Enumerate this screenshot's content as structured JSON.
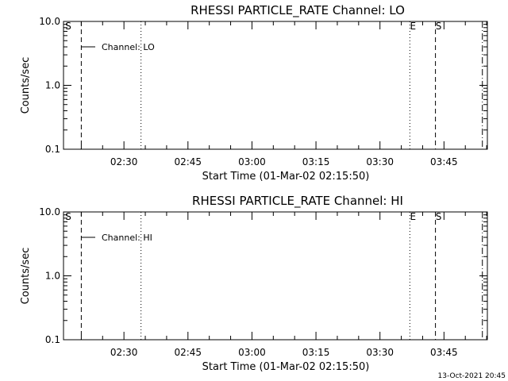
{
  "chart_data": [
    {
      "type": "line",
      "title": "RHESSI PARTICLE_RATE Channel: LO",
      "xlabel": "Start Time (01-Mar-02 02:15:50)",
      "ylabel": "Counts/sec",
      "y_scale": "log",
      "ylim": [
        0.1,
        10.0
      ],
      "y_ticks": [
        "10.0",
        "1.0",
        "0.1"
      ],
      "x_ticks": [
        "02:30",
        "02:45",
        "03:00",
        "03:15",
        "03:30",
        "03:45"
      ],
      "legend": {
        "label": "Channel: LO",
        "placement": "top-left"
      },
      "series": [
        {
          "name": "Channel: LO",
          "values": []
        }
      ],
      "markers": [
        {
          "time": "02:20",
          "label": "S",
          "style": "dashed"
        },
        {
          "time": "02:34",
          "label": "",
          "style": "dotted"
        },
        {
          "time": "03:37",
          "label": "E",
          "style": "dotted"
        },
        {
          "time": "03:43",
          "label": "S",
          "style": "dashed"
        },
        {
          "time": "03:54",
          "label": "",
          "style": "dash-dot"
        }
      ]
    },
    {
      "type": "line",
      "title": "RHESSI PARTICLE_RATE Channel: HI",
      "xlabel": "Start Time (01-Mar-02 02:15:50)",
      "ylabel": "Counts/sec",
      "y_scale": "log",
      "ylim": [
        0.1,
        10.0
      ],
      "y_ticks": [
        "10.0",
        "1.0",
        "0.1"
      ],
      "x_ticks": [
        "02:30",
        "02:45",
        "03:00",
        "03:15",
        "03:30",
        "03:45"
      ],
      "legend": {
        "label": "Channel: HI",
        "placement": "top-left"
      },
      "series": [
        {
          "name": "Channel: HI",
          "values": []
        }
      ],
      "markers": [
        {
          "time": "02:20",
          "label": "S",
          "style": "dashed"
        },
        {
          "time": "02:34",
          "label": "",
          "style": "dotted"
        },
        {
          "time": "03:37",
          "label": "E",
          "style": "dotted"
        },
        {
          "time": "03:43",
          "label": "S",
          "style": "dashed"
        },
        {
          "time": "03:54",
          "label": "",
          "style": "dash-dot"
        }
      ]
    }
  ],
  "footer": {
    "timestamp": "13-Oct-2021 20:45"
  }
}
